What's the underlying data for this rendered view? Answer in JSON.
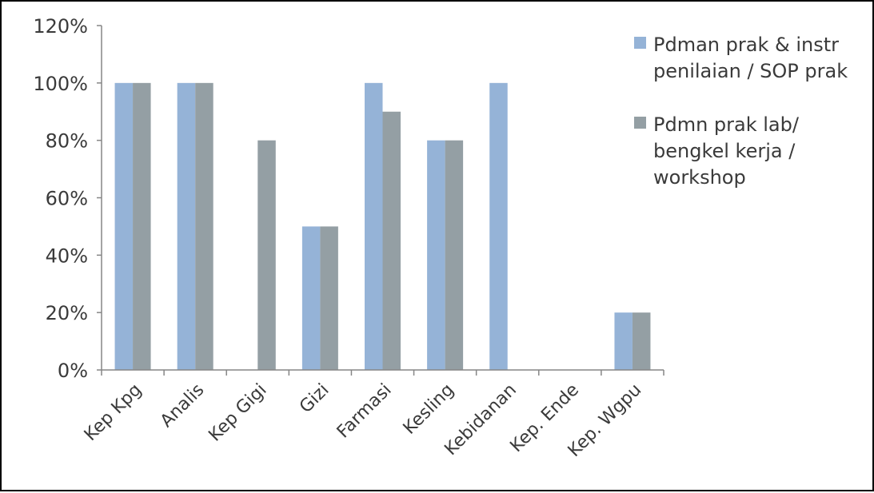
{
  "chart_data": {
    "type": "bar",
    "categories": [
      "Kep Kpg",
      "Analis",
      "Kep Gigi",
      "Gizi",
      "Farmasi",
      "Kesling",
      "Kebidanan",
      "Kep. Ende",
      "Kep. Wgpu"
    ],
    "series": [
      {
        "name": "Pdman prak &  instr penilaian / SOP prak",
        "name_lines": [
          "Pdman prak &  instr",
          "penilaian / SOP prak"
        ],
        "color": "#95b3d7",
        "values": [
          1.0,
          1.0,
          0,
          0.5,
          1.0,
          0.8,
          1.0,
          0,
          0.2
        ]
      },
      {
        "name": "Pdmn  prak lab/ bengkel kerja / workshop",
        "name_lines": [
          "Pdmn  prak lab/",
          "bengkel kerja /",
          "workshop"
        ],
        "color": "#949fa4",
        "values": [
          1.0,
          1.0,
          0.8,
          0.5,
          0.9,
          0.8,
          0,
          0,
          0.2
        ]
      }
    ],
    "yticks": [
      "0%",
      "20%",
      "40%",
      "60%",
      "80%",
      "100%",
      "120%"
    ],
    "ylim": [
      0,
      1.2
    ],
    "title": "",
    "xlabel": "",
    "ylabel": "",
    "legend": "right",
    "grid": false
  }
}
